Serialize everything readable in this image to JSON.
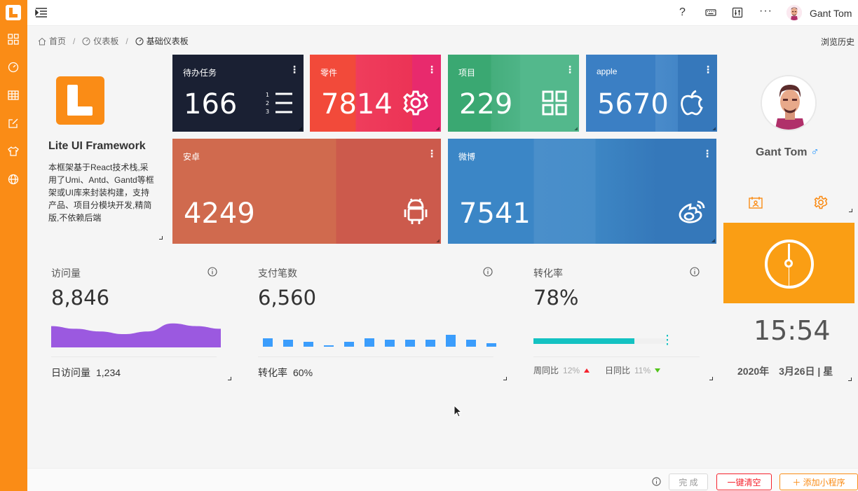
{
  "topbar": {
    "help": "?",
    "more": "···",
    "user_name": "Gant Tom"
  },
  "breadcrumb": {
    "home": "首页",
    "dashboard": "仪表板",
    "current": "基础仪表板"
  },
  "history_label": "浏览历史",
  "intro": {
    "title": "Lite UI Framework",
    "description": "本框架基于React技术栈,采用了Umi、Antd、Gantd等框架或UI库来封装构建，支持产品、项目分模块开发,精简版,不依赖后端"
  },
  "tiles": {
    "todo": {
      "label": "待办任务",
      "value": "166",
      "color": "#1a2033"
    },
    "parts": {
      "label": "零件",
      "value": "7814",
      "color": "#f0414a"
    },
    "project": {
      "label": "项目",
      "value": "229",
      "color": "#3aa872"
    },
    "apple": {
      "label": "apple",
      "value": "5670",
      "color": "#3b7fc4"
    },
    "android": {
      "label": "安卓",
      "value": "4249",
      "color": "#d0644c"
    },
    "weibo": {
      "label": "微博",
      "value": "7541",
      "color": "#3b82c4"
    }
  },
  "stats": {
    "visits": {
      "title": "访问量",
      "value": "8,846",
      "foot_label": "日访问量",
      "foot_value": "1,234"
    },
    "payments": {
      "title": "支付笔数",
      "value": "6,560",
      "foot_label": "转化率",
      "foot_value": "60%"
    },
    "conversion": {
      "title": "转化率",
      "value": "78%",
      "progress": 0.78,
      "week_label": "周同比",
      "week_value": "12%",
      "day_label": "日同比",
      "day_value": "11%"
    }
  },
  "chart_data": [
    {
      "type": "area",
      "values": [
        8,
        7,
        6,
        5,
        6,
        9,
        8,
        7
      ]
    },
    {
      "type": "bar",
      "values": [
        5,
        4,
        3,
        1,
        3,
        5,
        4,
        4,
        4,
        7,
        4,
        2
      ]
    }
  ],
  "profile": {
    "name": "Gant Tom",
    "gender": "♂"
  },
  "clock": {
    "time": "15:54",
    "date": "2020年　3月26日 | 星"
  },
  "bottombar": {
    "done": "完 成",
    "clear": "一键清空",
    "add": "＋ 添加小程序"
  },
  "colors": {
    "accent": "#fa8c16",
    "visits_area": "#9b59e0",
    "bars": "#3b9dfc",
    "progress": "#13c2c2"
  }
}
